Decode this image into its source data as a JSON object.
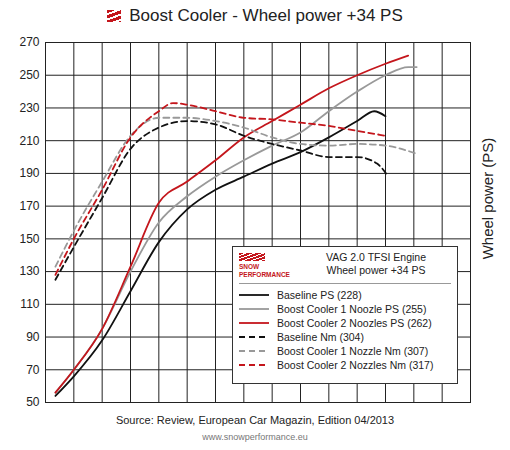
{
  "chart_data": {
    "type": "line",
    "title": "Boost Cooler - Wheel power +34 PS",
    "ylabel": "Wheel power (PS)",
    "logo": "SNOW PERFORMANCE",
    "annotations": [
      "VAG 2.0 TFSI Engine",
      "Wheel power +34 PS"
    ],
    "source": "Source: Review, European Car Magazin, Edition 04/2013",
    "website": "www.snowperformance.eu",
    "xlim": [
      0,
      15
    ],
    "xticks": [
      0,
      1,
      2,
      3,
      4,
      5,
      6,
      7,
      8,
      9,
      10,
      11,
      12,
      13,
      14,
      15
    ],
    "ylim": [
      50,
      270
    ],
    "yticks": [
      50,
      70,
      90,
      110,
      130,
      150,
      170,
      190,
      210,
      230,
      250,
      270
    ],
    "grid": true,
    "legend": "bottom-right",
    "tick_labels": "y",
    "series": [
      {
        "name": "Baseline PS (228)",
        "color": "#111111",
        "line_style": "solid",
        "x": [
          0.35,
          1,
          2,
          3,
          4,
          5,
          6,
          7,
          8,
          9,
          10,
          11,
          11.6,
          12
        ],
        "values": [
          54,
          66,
          88,
          118,
          148,
          168,
          180,
          188,
          196,
          203,
          212,
          222,
          228,
          225
        ]
      },
      {
        "name": "Boost Cooler 1 Noozle PS (255)",
        "color": "#999999",
        "line_style": "solid",
        "x": [
          0.35,
          1,
          2,
          3,
          4,
          5,
          6,
          7,
          8,
          9,
          10,
          11,
          12,
          12.8,
          13.1
        ],
        "values": [
          56,
          70,
          95,
          130,
          160,
          176,
          188,
          198,
          207,
          215,
          228,
          240,
          250,
          255,
          255
        ]
      },
      {
        "name": "Boost Cooler 2 Noozles PS (262)",
        "color": "#c4161c",
        "line_style": "solid",
        "x": [
          0.35,
          1,
          2,
          3,
          4,
          5,
          6,
          7,
          8,
          9,
          10,
          11,
          12,
          12.8
        ],
        "values": [
          56,
          70,
          95,
          133,
          172,
          185,
          198,
          212,
          222,
          232,
          242,
          250,
          257,
          262
        ]
      },
      {
        "name": "Baseline Nm (304)",
        "color": "#111111",
        "line_style": "dashed",
        "x": [
          0.35,
          1,
          2,
          3,
          4,
          5,
          6,
          7,
          8,
          9,
          10,
          11,
          11.7,
          12.1
        ],
        "values": [
          125,
          145,
          175,
          205,
          218,
          222,
          220,
          213,
          208,
          204,
          200,
          200,
          196,
          188
        ]
      },
      {
        "name": "Boost Cooler 1 Nozzle Nm (307)",
        "color": "#999999",
        "line_style": "dashed",
        "x": [
          0.35,
          1,
          2,
          3,
          4,
          5,
          6,
          7,
          8,
          9,
          10,
          11,
          12,
          13.1
        ],
        "values": [
          133,
          155,
          185,
          213,
          224,
          224,
          222,
          218,
          212,
          208,
          207,
          208,
          207,
          202
        ]
      },
      {
        "name": "Boost Cooler 2 Nozzles Nm (317)",
        "color": "#c4161c",
        "line_style": "dashed",
        "x": [
          0.35,
          1,
          2,
          3,
          4,
          4.5,
          5,
          6,
          7,
          8,
          9,
          10,
          11,
          12
        ],
        "values": [
          128,
          150,
          180,
          212,
          228,
          233,
          232,
          228,
          224,
          223,
          221,
          219,
          216,
          213
        ]
      }
    ]
  }
}
